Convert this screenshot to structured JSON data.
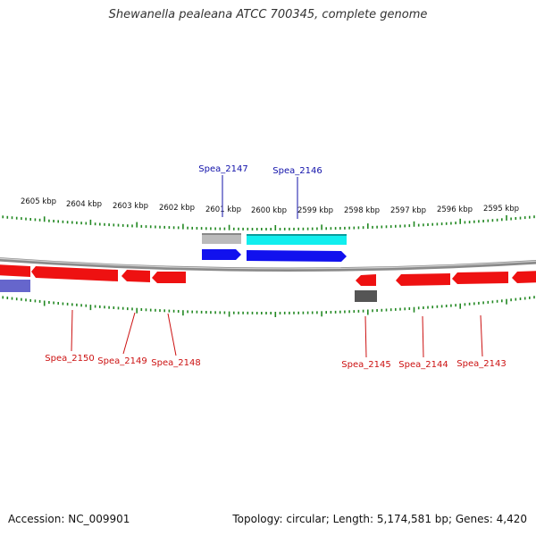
{
  "title": "Shewanella pealeana ATCC 700345, complete genome",
  "footer": {
    "accession": "Accession: NC_009901",
    "summary": "Topology: circular; Length: 5,174,581 bp; Genes: 4,420"
  },
  "colors": {
    "tick": "#228822",
    "backbone": "#9a9a9a",
    "label_above": "#1111aa",
    "label_below": "#cc1111",
    "feature_red": "#ee1111",
    "feature_blue": "#1111ee",
    "feature_cyan": "#11eeee",
    "feature_grey": "#bbbbbb",
    "feature_darkgrey": "#555555",
    "feature_lavender": "#6666cc"
  },
  "scale_labels": [
    "2605 kbp",
    "2604 kbp",
    "2603 kbp",
    "2602 kbp",
    "2601 kbp",
    "2600 kbp",
    "2599 kbp",
    "2598 kbp",
    "2597 kbp",
    "2596 kbp",
    "2595 kbp"
  ],
  "gene_labels_above": [
    "Spea_2147",
    "Spea_2146"
  ],
  "gene_labels_below": [
    "Spea_2150",
    "Spea_2149",
    "Spea_2148",
    "Spea_2145",
    "Spea_2144",
    "Spea_2143"
  ]
}
